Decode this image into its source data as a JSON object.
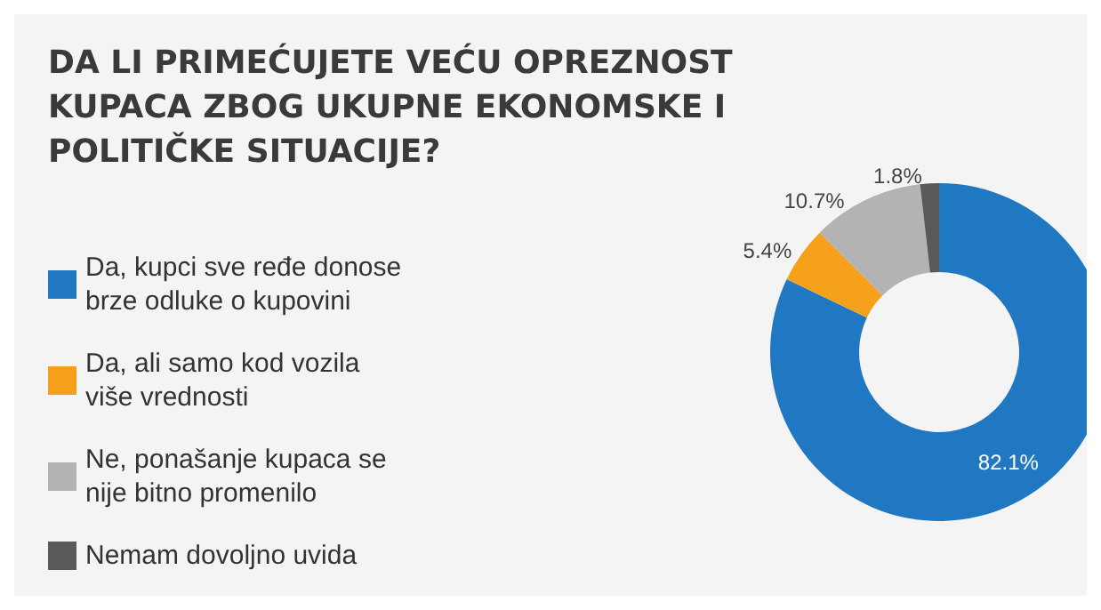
{
  "chart_data": {
    "type": "donut",
    "title": "DA LI PRIMEĆUJETE VEĆU OPREZNOST KUPACA ZBOG UKUPNE EKONOMSKE I POLITIČKE SITUACIJE?",
    "categories": [
      "Da, kupci sve ređe donose brze odluke o kupovini",
      "Da, ali samo kod vozila više vrednosti",
      "Ne, ponašanje kupaca se nije bitno promenilo",
      "Nemam dovoljno uvida"
    ],
    "values": [
      82.1,
      5.4,
      10.7,
      1.8
    ],
    "colors": [
      "#1f78c1",
      "#f5a01a",
      "#b3b3b3",
      "#58595b"
    ],
    "value_labels": [
      "82.1%",
      "5.4%",
      "10.7%",
      "1.8%"
    ],
    "legend": "left"
  }
}
